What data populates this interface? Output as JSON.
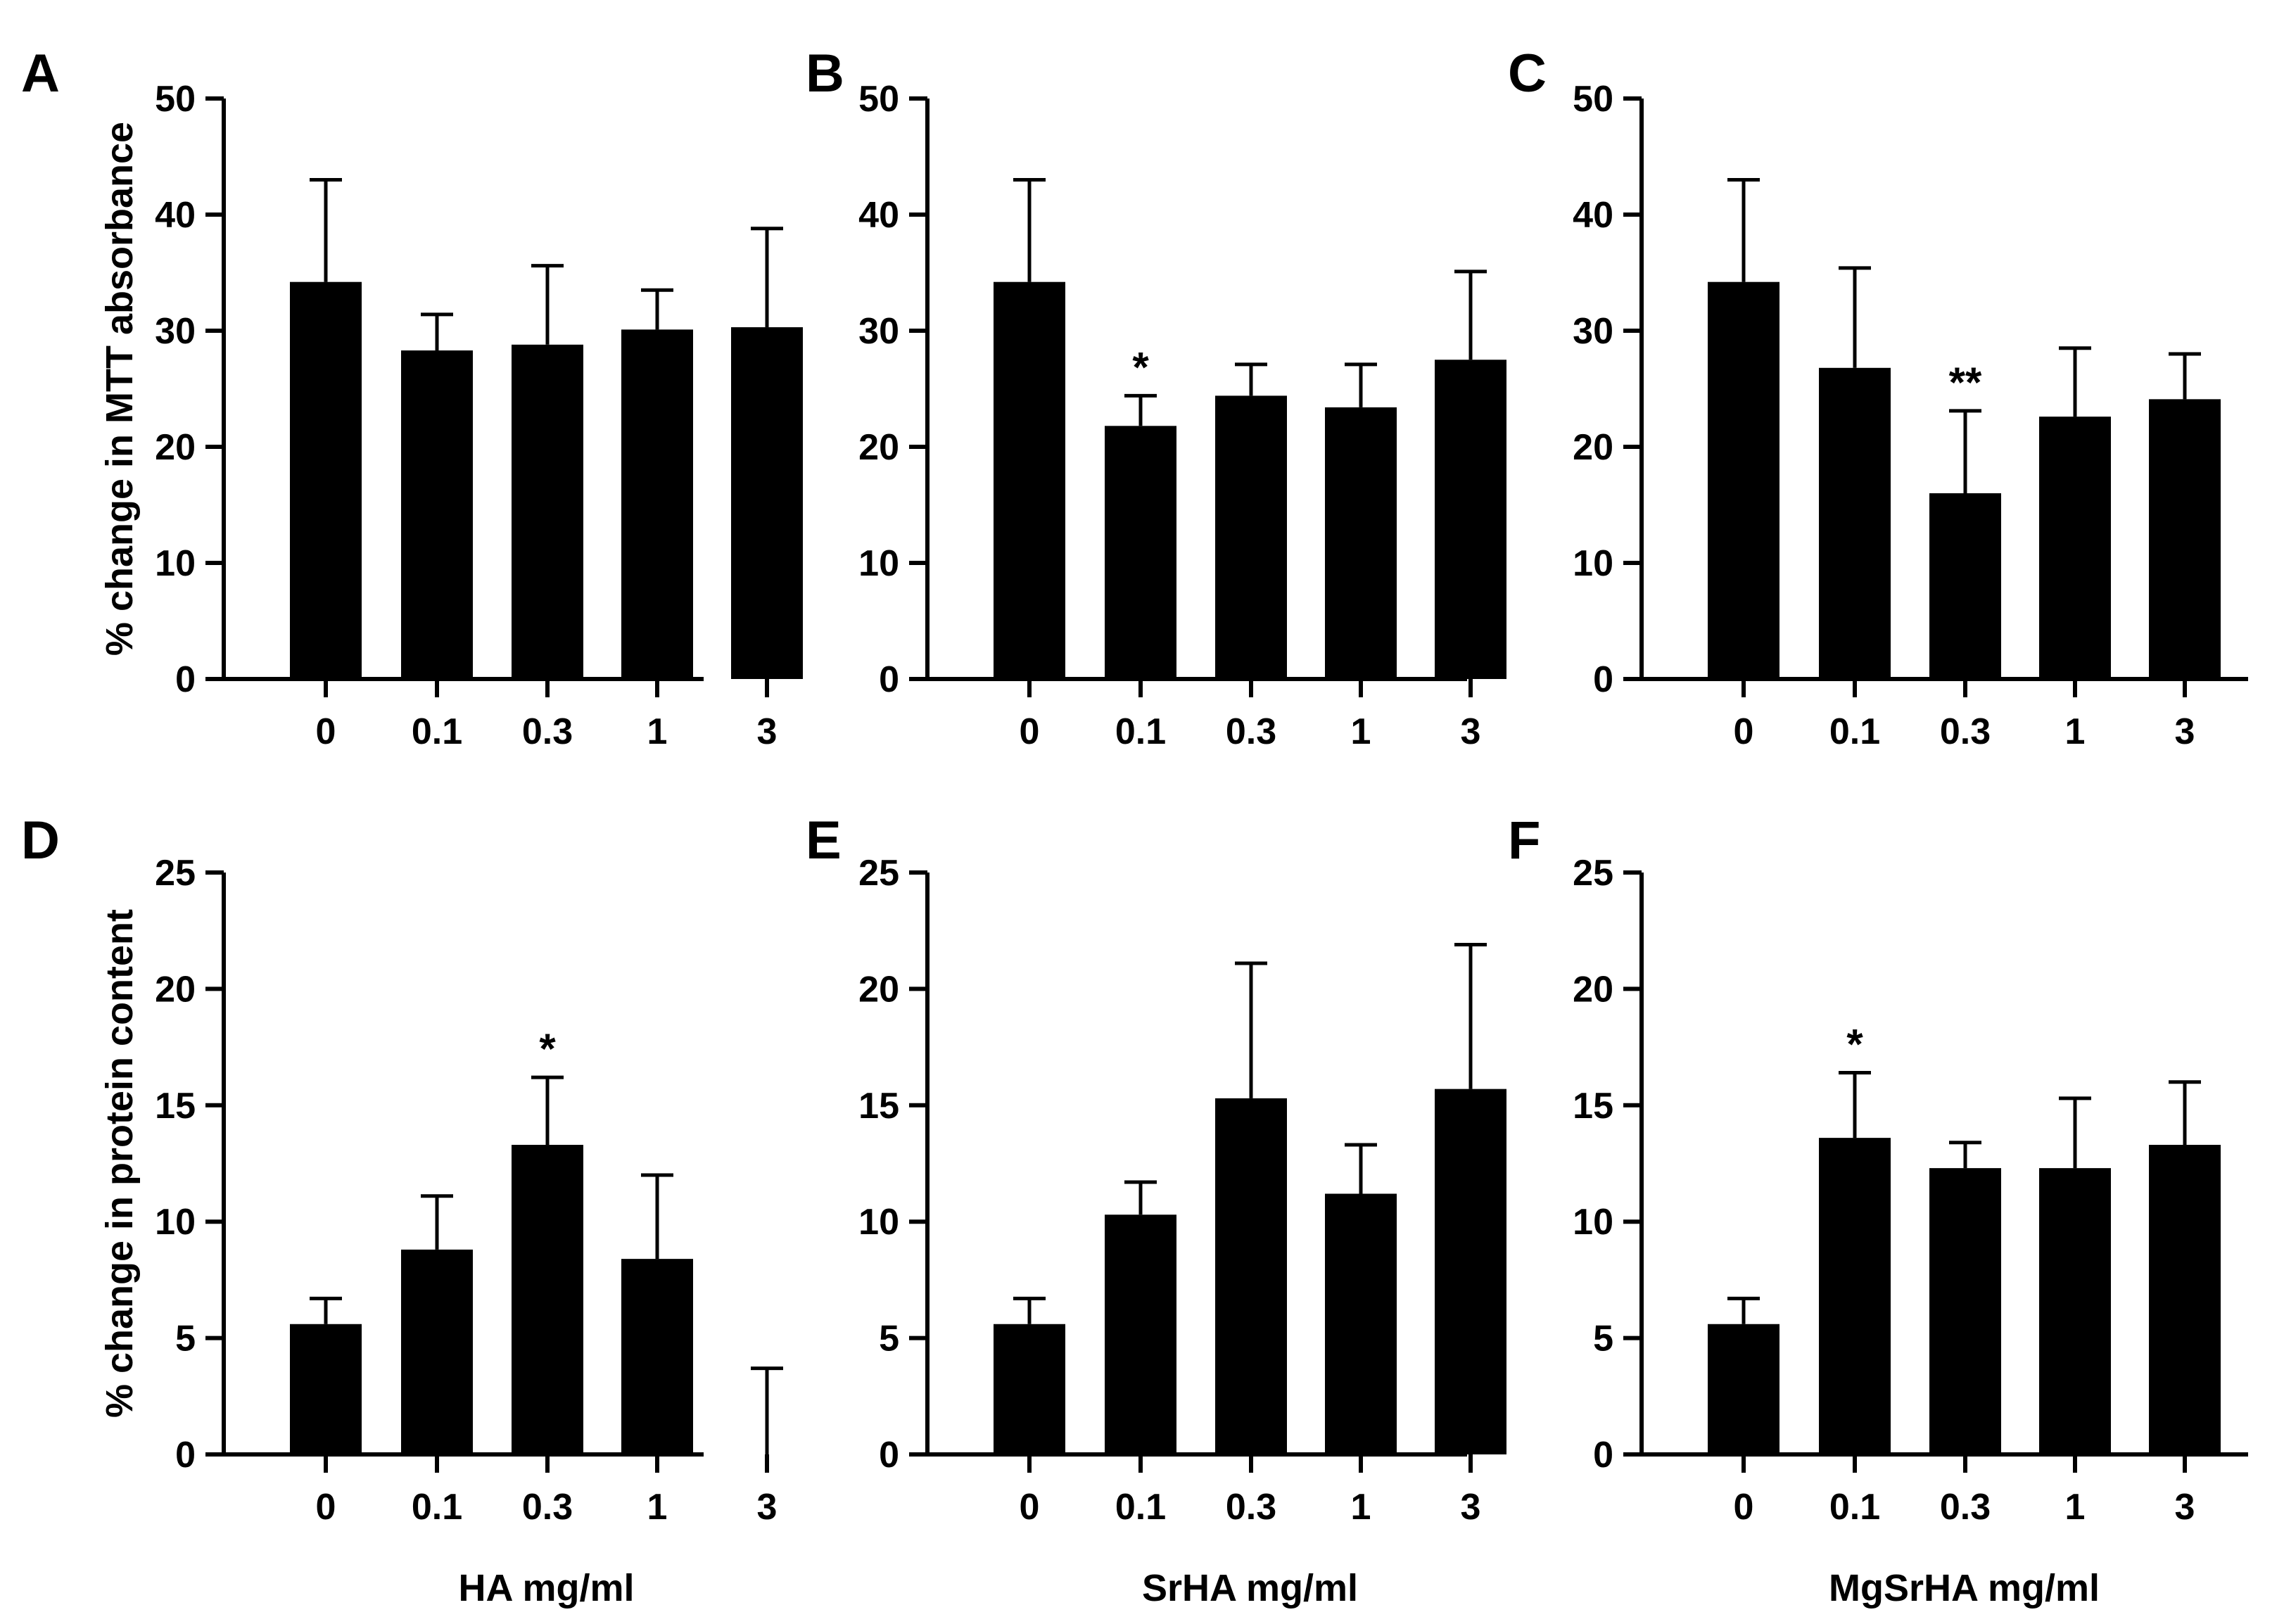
{
  "colors": {
    "bar": "#000000",
    "background": "#ffffff"
  },
  "chart_data": [
    {
      "panel": "A",
      "type": "bar",
      "categories": [
        "0",
        "0.1",
        "0.3",
        "1",
        "3"
      ],
      "values": [
        34.2,
        28.3,
        28.8,
        30.1,
        30.3
      ],
      "errors": [
        8.8,
        3.1,
        6.8,
        3.4,
        8.5
      ],
      "significance": [
        "",
        "",
        "",
        "",
        ""
      ],
      "ylim": [
        0,
        50
      ],
      "yticks": [
        "0",
        "10",
        "20",
        "30",
        "40",
        "50"
      ],
      "ylabel": "% change in MTT absorbance",
      "xlabel": ""
    },
    {
      "panel": "B",
      "type": "bar",
      "categories": [
        "0",
        "0.1",
        "0.3",
        "1",
        "3"
      ],
      "values": [
        34.2,
        21.8,
        24.4,
        23.4,
        27.5
      ],
      "errors": [
        8.8,
        2.6,
        2.7,
        3.7,
        7.6
      ],
      "significance": [
        "",
        "*",
        "",
        "",
        ""
      ],
      "ylim": [
        0,
        50
      ],
      "yticks": [
        "0",
        "10",
        "20",
        "30",
        "40",
        "50"
      ],
      "ylabel": "",
      "xlabel": ""
    },
    {
      "panel": "C",
      "type": "bar",
      "categories": [
        "0",
        "0.1",
        "0.3",
        "1",
        "3"
      ],
      "values": [
        34.2,
        26.8,
        16.0,
        22.6,
        24.1
      ],
      "errors": [
        8.8,
        8.6,
        7.1,
        5.9,
        3.9
      ],
      "significance": [
        "",
        "",
        "**",
        "",
        ""
      ],
      "ylim": [
        0,
        50
      ],
      "yticks": [
        "0",
        "10",
        "20",
        "30",
        "40",
        "50"
      ],
      "ylabel": "",
      "xlabel": ""
    },
    {
      "panel": "D",
      "type": "bar",
      "categories": [
        "0",
        "0.1",
        "0.3",
        "1",
        "3"
      ],
      "values": [
        5.6,
        8.8,
        13.3,
        8.4,
        0.0
      ],
      "errors": [
        1.1,
        2.3,
        2.9,
        3.6,
        3.7
      ],
      "significance": [
        "",
        "",
        "*",
        "",
        ""
      ],
      "ylim": [
        0,
        25
      ],
      "yticks": [
        "0",
        "5",
        "10",
        "15",
        "20",
        "25"
      ],
      "ylabel": "% change in protein content",
      "xlabel": "HA mg/ml"
    },
    {
      "panel": "E",
      "type": "bar",
      "categories": [
        "0",
        "0.1",
        "0.3",
        "1",
        "3"
      ],
      "values": [
        5.6,
        10.3,
        15.3,
        11.2,
        15.7
      ],
      "errors": [
        1.1,
        1.4,
        5.8,
        2.1,
        6.2
      ],
      "significance": [
        "",
        "",
        "",
        "",
        ""
      ],
      "ylim": [
        0,
        25
      ],
      "yticks": [
        "0",
        "5",
        "10",
        "15",
        "20",
        "25"
      ],
      "ylabel": "",
      "xlabel": "SrHA mg/ml"
    },
    {
      "panel": "F",
      "type": "bar",
      "categories": [
        "0",
        "0.1",
        "0.3",
        "1",
        "3"
      ],
      "values": [
        5.6,
        13.6,
        12.3,
        12.3,
        13.3
      ],
      "errors": [
        1.1,
        2.8,
        1.1,
        3.0,
        2.7
      ],
      "significance": [
        "",
        "*",
        "",
        "",
        ""
      ],
      "ylim": [
        0,
        25
      ],
      "yticks": [
        "0",
        "5",
        "10",
        "15",
        "20",
        "25"
      ],
      "ylabel": "",
      "xlabel": "MgSrHA mg/ml"
    }
  ]
}
